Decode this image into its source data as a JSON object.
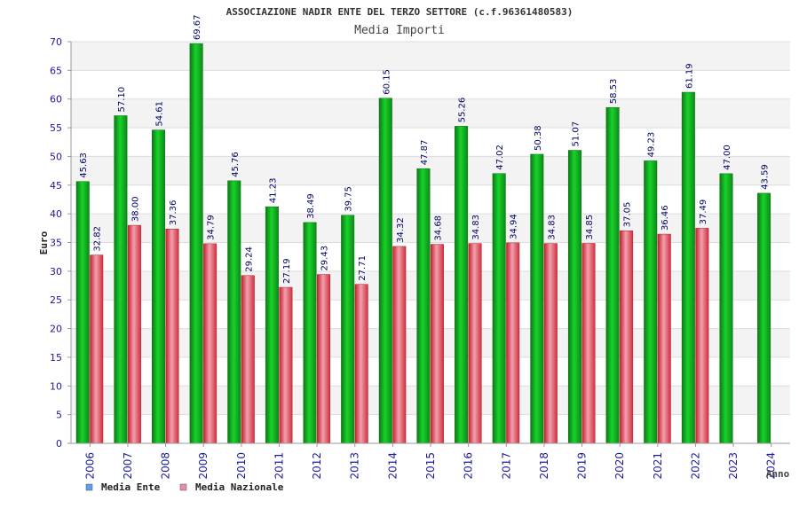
{
  "chart_data": {
    "type": "bar",
    "title": "ASSOCIAZIONE NADIR ENTE DEL TERZO SETTORE (c.f.96361480583)",
    "subtitle": "Media Importi",
    "xlabel": "Anno",
    "ylabel": "Euro",
    "ylim": [
      0,
      70
    ],
    "yticks": [
      0,
      5,
      10,
      15,
      20,
      25,
      30,
      35,
      40,
      45,
      50,
      55,
      60,
      65,
      70
    ],
    "grid": true,
    "legend_position": "bottom-left",
    "categories": [
      "2006",
      "2007",
      "2008",
      "2009",
      "2010",
      "2011",
      "2012",
      "2013",
      "2014",
      "2015",
      "2016",
      "2017",
      "2018",
      "2019",
      "2020",
      "2021",
      "2022",
      "2023",
      "2024"
    ],
    "series": [
      {
        "name": "Media Ente",
        "color": "#0fae1f",
        "legend_color": "#5aa0ef",
        "values": [
          45.63,
          57.1,
          54.61,
          69.67,
          45.76,
          41.23,
          38.49,
          39.75,
          60.15,
          47.87,
          55.26,
          47.02,
          50.38,
          51.07,
          58.53,
          49.23,
          61.19,
          47.0,
          43.59
        ],
        "labels": [
          "45.63",
          "57.10",
          "54.61",
          "69.67",
          "45.76",
          "41.23",
          "38.49",
          "39.75",
          "60.15",
          "47.87",
          "55.26",
          "47.02",
          "50.38",
          "51.07",
          "58.53",
          "49.23",
          "61.19",
          "47.00",
          "43.59"
        ]
      },
      {
        "name": "Media Nazionale",
        "color": "#e4414e",
        "legend_color": "#e98ab1",
        "values": [
          32.82,
          38.0,
          37.36,
          34.79,
          29.24,
          27.19,
          29.43,
          27.71,
          34.32,
          34.68,
          34.83,
          34.94,
          34.83,
          34.85,
          37.05,
          36.46,
          37.49,
          null,
          null
        ],
        "labels": [
          "32.82",
          "38.00",
          "37.36",
          "34.79",
          "29.24",
          "27.19",
          "29.43",
          "27.71",
          "34.32",
          "34.68",
          "34.83",
          "34.94",
          "34.83",
          "34.85",
          "37.05",
          "36.46",
          "37.49",
          null,
          null
        ]
      }
    ]
  }
}
